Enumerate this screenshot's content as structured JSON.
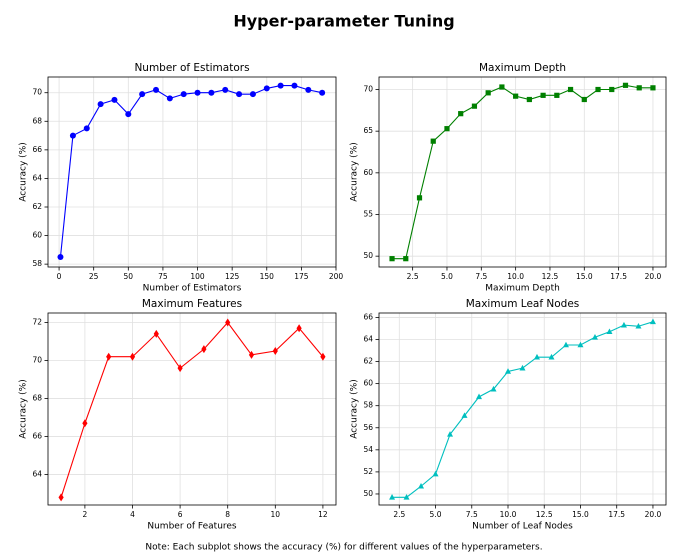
{
  "title": "Hyper-parameter Tuning",
  "note": "Note: Each subplot shows the accuracy (%) for different values of the hyperparameters.",
  "chart_data": [
    {
      "type": "line",
      "title": "Number of Estimators",
      "xlabel": "Number of Estimators",
      "ylabel": "Accuracy (%)",
      "x": [
        1,
        10,
        20,
        30,
        40,
        50,
        60,
        70,
        80,
        90,
        100,
        110,
        120,
        130,
        140,
        150,
        160,
        170,
        180,
        190
      ],
      "values": [
        58.5,
        67.0,
        67.5,
        69.2,
        69.5,
        68.5,
        69.9,
        70.2,
        69.6,
        69.9,
        70.0,
        70.0,
        70.2,
        69.9,
        69.9,
        70.3,
        70.5,
        70.5,
        70.2,
        70.0
      ],
      "color": "#0000ff",
      "marker": "circle",
      "grid": true,
      "xlim": [
        -8,
        200
      ],
      "xticks": [
        0,
        25,
        50,
        75,
        100,
        125,
        150,
        175,
        200
      ],
      "ylim": [
        57.8,
        71.1
      ],
      "yticks": [
        58,
        60,
        62,
        64,
        66,
        68,
        70
      ]
    },
    {
      "type": "line",
      "title": "Maximum Depth",
      "xlabel": "Maximum Depth",
      "ylabel": "Accuracy (%)",
      "x": [
        1,
        2,
        3,
        4,
        5,
        6,
        7,
        8,
        9,
        10,
        11,
        12,
        13,
        14,
        15,
        16,
        17,
        18,
        19,
        20
      ],
      "values": [
        49.7,
        49.7,
        57.0,
        63.8,
        65.3,
        67.1,
        68.0,
        69.6,
        70.3,
        69.2,
        68.8,
        69.3,
        69.3,
        70.0,
        68.8,
        70.0,
        70.0,
        70.5,
        70.2,
        70.2
      ],
      "color": "#008000",
      "marker": "square",
      "grid": true,
      "xlim": [
        0.05,
        20.95
      ],
      "xticks": [
        2.5,
        {
          "value": 5,
          "label": "5.0"
        },
        7.5,
        {
          "value": 10,
          "label": "10.0"
        },
        12.5,
        {
          "value": 15,
          "label": "15.0"
        },
        17.5,
        {
          "value": 20,
          "label": "20.0"
        }
      ],
      "ylim": [
        48.7,
        71.5
      ],
      "yticks": [
        50,
        55,
        60,
        65,
        70
      ]
    },
    {
      "type": "line",
      "title": "Maximum Features",
      "xlabel": "Number of Features",
      "ylabel": "Accuracy (%)",
      "x": [
        1,
        2,
        3,
        4,
        5,
        6,
        7,
        8,
        9,
        10,
        11,
        12
      ],
      "values": [
        62.8,
        66.7,
        70.2,
        70.2,
        71.4,
        69.6,
        70.6,
        72.0,
        70.3,
        70.5,
        71.7,
        70.2
      ],
      "color": "#ff0000",
      "marker": "diamond",
      "grid": true,
      "xlim": [
        0.45,
        12.55
      ],
      "xticks": [
        2,
        4,
        6,
        8,
        10,
        12
      ],
      "ylim": [
        62.4,
        72.5
      ],
      "yticks": [
        64,
        66,
        68,
        70,
        72
      ]
    },
    {
      "type": "line",
      "title": "Maximum Leaf Nodes",
      "xlabel": "Number of Leaf Nodes",
      "ylabel": "Accuracy (%)",
      "x": [
        2,
        3,
        4,
        5,
        6,
        7,
        8,
        9,
        10,
        11,
        12,
        13,
        14,
        15,
        16,
        17,
        18,
        19,
        20
      ],
      "values": [
        49.7,
        49.7,
        50.7,
        51.8,
        55.4,
        57.1,
        58.8,
        59.5,
        61.1,
        61.4,
        62.4,
        62.4,
        63.5,
        63.5,
        64.2,
        64.7,
        65.3,
        65.2,
        65.6
      ],
      "color": "#00bfbf",
      "marker": "triangle",
      "grid": true,
      "xlim": [
        1.1,
        20.9
      ],
      "xticks": [
        2.5,
        {
          "value": 5,
          "label": "5.0"
        },
        7.5,
        {
          "value": 10,
          "label": "10.0"
        },
        12.5,
        {
          "value": 15,
          "label": "15.0"
        },
        17.5,
        {
          "value": 20,
          "label": "20.0"
        }
      ],
      "ylim": [
        49.0,
        66.4
      ],
      "yticks": [
        50,
        52,
        54,
        56,
        58,
        60,
        62,
        64,
        66
      ]
    }
  ]
}
